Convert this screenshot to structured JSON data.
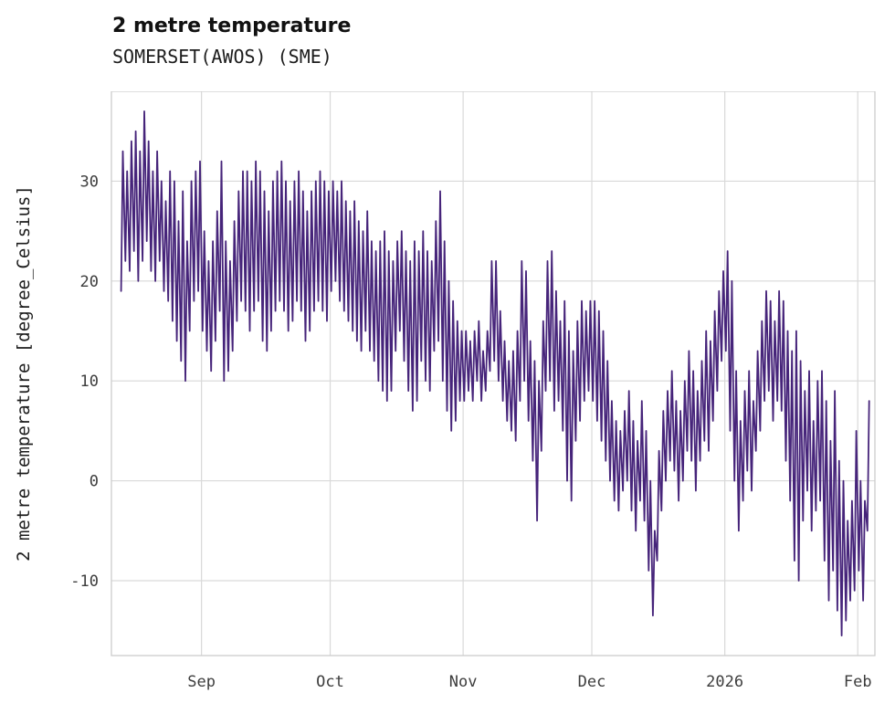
{
  "header": {
    "title": "2 metre temperature",
    "subtitle": "SOMERSET(AWOS) (SME)"
  },
  "chart_data": {
    "type": "line",
    "title": "2 metre temperature",
    "subtitle": "SOMERSET(AWOS) (SME)",
    "xlabel": "",
    "ylabel": "2 metre temperature [degree_Celsius]",
    "x_axis_note": "time from mid-August to early February, monthly major ticks",
    "xlim": [
      -2,
      176
    ],
    "ylim": [
      -17.5,
      39
    ],
    "yticks": [
      -10,
      0,
      10,
      20,
      30
    ],
    "xticks": [
      {
        "day": 19,
        "label": "Sep"
      },
      {
        "day": 49,
        "label": "Oct"
      },
      {
        "day": 80,
        "label": "Nov"
      },
      {
        "day": 110,
        "label": "Dec"
      },
      {
        "day": 141,
        "label": "2026"
      },
      {
        "day": 172,
        "label": "Feb"
      }
    ],
    "grid": true,
    "legend": "none",
    "line_color": "#46247A",
    "grid_color": "#d9d9d9",
    "spine_color": "#cccccc",
    "tick_color": "#3d3d3d",
    "series": [
      {
        "name": "2 metre temperature",
        "unit": "degree_Celsius",
        "sampling": "per-day minimum and maximum (diurnal cycle rendered as zigzag), day index 0 = left edge of data",
        "daily_max": [
          33,
          31,
          34,
          35,
          33,
          37,
          34,
          31,
          33,
          30,
          28,
          31,
          30,
          26,
          29,
          24,
          30,
          31,
          32,
          25,
          22,
          24,
          27,
          32,
          24,
          22,
          26,
          29,
          31,
          31,
          30,
          32,
          31,
          29,
          27,
          30,
          31,
          32,
          30,
          28,
          30,
          31,
          29,
          27,
          29,
          30,
          31,
          30,
          29,
          30,
          29,
          30,
          28,
          27,
          28,
          26,
          25,
          27,
          24,
          23,
          24,
          25,
          23,
          22,
          24,
          25,
          23,
          22,
          24,
          23,
          25,
          23,
          22,
          26,
          29,
          24,
          20,
          18,
          16,
          15,
          15,
          14,
          15,
          16,
          13,
          15,
          22,
          22,
          17,
          14,
          12,
          13,
          15,
          22,
          21,
          14,
          12,
          10,
          16,
          22,
          23,
          19,
          16,
          18,
          15,
          13,
          16,
          18,
          17,
          18,
          18,
          17,
          15,
          12,
          8,
          6,
          5,
          7,
          9,
          6,
          4,
          8,
          5,
          0,
          -5,
          3,
          7,
          9,
          11,
          8,
          7,
          10,
          13,
          11,
          9,
          12,
          15,
          14,
          17,
          19,
          21,
          23,
          20,
          11,
          6,
          9,
          11,
          8,
          13,
          16,
          19,
          18,
          16,
          19,
          18,
          15,
          13,
          15,
          12,
          9,
          11,
          6,
          10,
          11,
          8,
          4,
          9,
          2,
          0,
          -4,
          -2,
          5,
          0,
          -2,
          8
        ],
        "daily_min": [
          19,
          22,
          21,
          23,
          20,
          22,
          24,
          21,
          20,
          22,
          19,
          18,
          16,
          14,
          12,
          10,
          15,
          18,
          19,
          15,
          13,
          11,
          14,
          17,
          10,
          11,
          13,
          16,
          18,
          17,
          15,
          17,
          18,
          14,
          13,
          15,
          17,
          18,
          17,
          15,
          16,
          18,
          17,
          14,
          15,
          17,
          18,
          17,
          16,
          19,
          20,
          18,
          17,
          16,
          15,
          14,
          13,
          15,
          13,
          12,
          10,
          9,
          8,
          9,
          13,
          15,
          12,
          9,
          7,
          8,
          12,
          10,
          9,
          13,
          14,
          10,
          7,
          5,
          6,
          8,
          8,
          9,
          8,
          10,
          8,
          9,
          11,
          12,
          10,
          8,
          6,
          5,
          4,
          8,
          10,
          6,
          2,
          -4,
          3,
          9,
          10,
          7,
          8,
          5,
          0,
          -2,
          4,
          6,
          8,
          9,
          8,
          6,
          4,
          2,
          0,
          -2,
          -3,
          -1,
          0,
          -3,
          -5,
          -2,
          -4,
          -9,
          -13.5,
          -8,
          -3,
          0,
          2,
          1,
          -2,
          0,
          3,
          2,
          -1,
          2,
          4,
          3,
          6,
          9,
          12,
          13,
          5,
          0,
          -5,
          -2,
          1,
          -1,
          3,
          5,
          8,
          9,
          6,
          8,
          7,
          2,
          -2,
          -8,
          -10,
          -4,
          -1,
          -5,
          -3,
          -2,
          -8,
          -12,
          -9,
          -13,
          -15.5,
          -14,
          -12,
          -11,
          -9,
          -12,
          -5
        ]
      }
    ]
  }
}
